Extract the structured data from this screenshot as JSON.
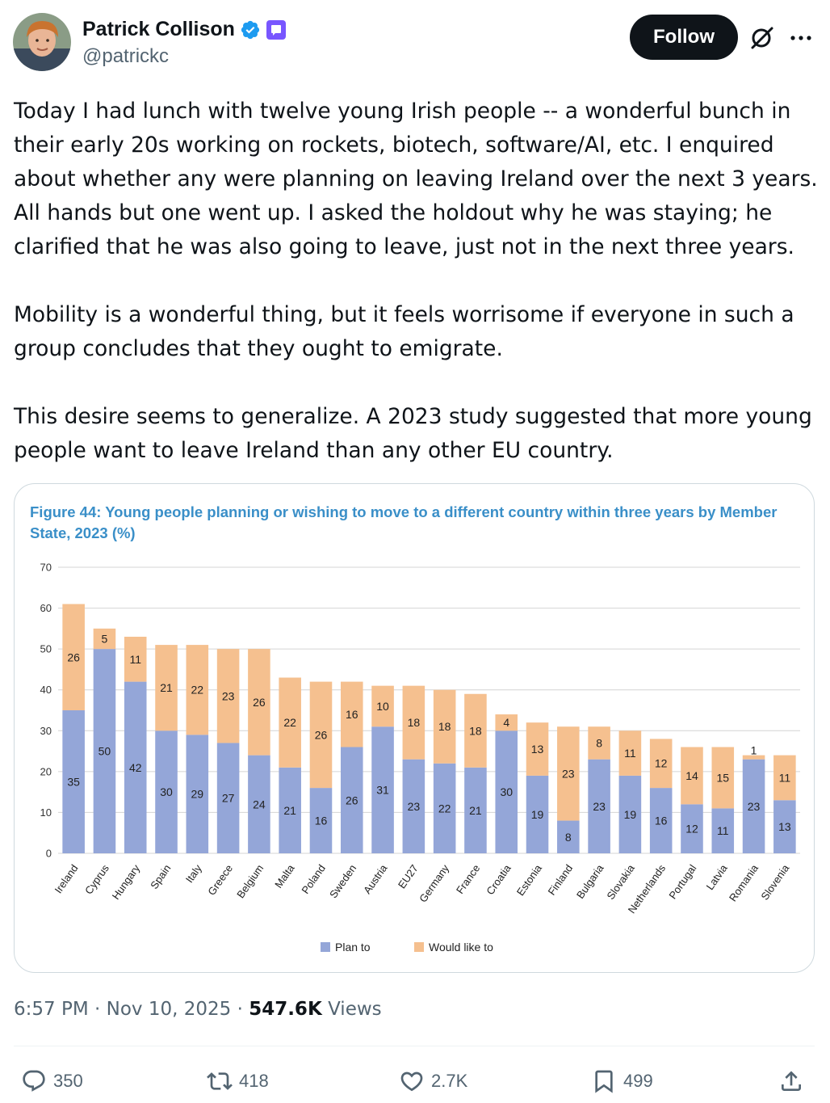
{
  "author": {
    "display_name": "Patrick Collison",
    "handle": "@patrickc",
    "verified": true,
    "follow_label": "Follow"
  },
  "tweet": {
    "lines_p1": [
      "Today I had lunch with twelve young Irish people -- a wonderful bunch in",
      "their early 20s working on rockets, biotech, software/AI, etc. I enquired",
      "about whether any were planning on leaving Ireland over the next 3 years.",
      "All hands but one went up. I asked the holdout why he was staying; he",
      "clarified that he was also going to leave, just not in the next three years."
    ],
    "lines_p2": [
      "Mobility is a wonderful thing, but it feels worrisome if everyone in such a",
      "group concludes that they ought to emigrate."
    ],
    "lines_p3": [
      "This desire seems to generalize. A 2023 study suggested that more young",
      "people want to leave Ireland than any other EU country."
    ]
  },
  "meta": {
    "time": "6:57 PM",
    "sep": "·",
    "date": "Nov 10, 2025",
    "views_count": "547.6K",
    "views_label": "Views"
  },
  "actions": {
    "replies": "350",
    "reposts": "418",
    "likes": "2.7K",
    "bookmarks": "499"
  },
  "colors": {
    "plan_to": "#94a6d8",
    "would_like_to": "#f5c08f",
    "title": "#3a8fc8",
    "follow_bg": "#0f1419",
    "verified": "#1d9bf0",
    "badge": "#7856ff"
  },
  "chart_data": {
    "type": "bar",
    "stacked": true,
    "title": "Figure 44: Young people planning or wishing to move to a different country within three years by Member State, 2023 (%)",
    "title_lines": [
      "Figure 44: Young people planning or wishing to move to a different country within three years by Member",
      "State, 2023 (%)"
    ],
    "categories": [
      "Ireland",
      "Cyprus",
      "Hungary",
      "Spain",
      "Italy",
      "Greece",
      "Belgium",
      "Malta",
      "Poland",
      "Sweden",
      "Austria",
      "EU27",
      "Germany",
      "France",
      "Croatia",
      "Estonia",
      "Finland",
      "Bulgaria",
      "Slovakia",
      "Netherlands",
      "Portugal",
      "Latvia",
      "Romania",
      "Slovenia"
    ],
    "series": [
      {
        "name": "Plan to",
        "values": [
          35,
          50,
          42,
          30,
          29,
          27,
          24,
          21,
          16,
          26,
          31,
          23,
          22,
          21,
          30,
          19,
          8,
          23,
          19,
          16,
          12,
          11,
          23,
          13
        ]
      },
      {
        "name": "Would like to",
        "values": [
          26,
          5,
          11,
          21,
          22,
          23,
          26,
          22,
          26,
          16,
          10,
          18,
          18,
          18,
          4,
          13,
          23,
          8,
          11,
          12,
          14,
          15,
          1,
          11
        ]
      }
    ],
    "yticks": [
      0,
      10,
      20,
      30,
      40,
      50,
      60,
      70
    ],
    "ylim": [
      0,
      70
    ],
    "grid": true,
    "legend": "bottom-center"
  }
}
